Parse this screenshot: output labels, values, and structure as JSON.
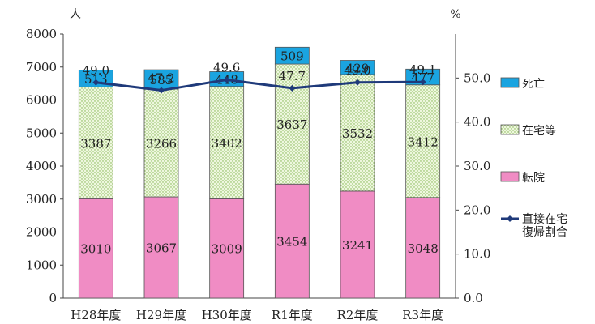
{
  "chart_data": {
    "type": "bar",
    "stacked": true,
    "categories": [
      "H28年度",
      "H29年度",
      "H30年度",
      "R1年度",
      "R2年度",
      "R3年度"
    ],
    "series": [
      {
        "name": "転院",
        "values": [
          3010,
          3067,
          3009,
          3454,
          3241,
          3048
        ],
        "color": "#f08cc4"
      },
      {
        "name": "在宅等",
        "values": [
          3387,
          3266,
          3402,
          3637,
          3532,
          3412
        ],
        "color": "#e9f4d6"
      },
      {
        "name": "死亡",
        "values": [
          513,
          585,
          448,
          509,
          429,
          477
        ],
        "color": "#1aa4e0"
      }
    ],
    "line_series": {
      "name": "直接在宅復帰割合",
      "values": [
        49.0,
        47.2,
        49.6,
        47.7,
        49.0,
        49.1
      ],
      "labels": [
        "49.0",
        "47.2",
        "49.6",
        "47.7",
        "49.0",
        "49.1"
      ],
      "color": "#1f3a7a",
      "axis": "right"
    },
    "y_left": {
      "unit": "人",
      "min": 0,
      "max": 8000,
      "ticks": [
        "0",
        "1000",
        "2000",
        "3000",
        "4000",
        "5000",
        "6000",
        "7000",
        "8000"
      ]
    },
    "y_right": {
      "unit": "%",
      "min": 0,
      "max": 60,
      "ticks": [
        "0.0",
        "10.0",
        "20.0",
        "30.0",
        "40.0",
        "50.0"
      ]
    },
    "legend": {
      "placement": "right",
      "entries": [
        {
          "label": "死亡",
          "kind": "box",
          "series": 2
        },
        {
          "label": "在宅等",
          "kind": "box",
          "series": 1
        },
        {
          "label": "転院",
          "kind": "box",
          "series": 0
        },
        {
          "label_lines": [
            "直接在宅",
            "復帰割合"
          ],
          "kind": "line"
        }
      ]
    }
  }
}
